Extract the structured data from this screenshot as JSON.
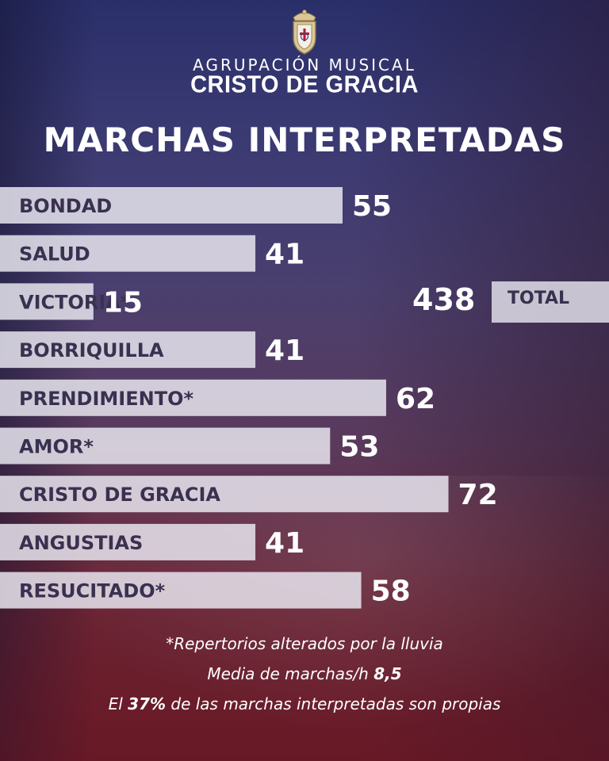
{
  "header": {
    "brand_top": "AGRUPACIÓN MUSICAL",
    "brand_main": "CRISTO DE GRACIA",
    "title": "MARCHAS INTERPRETADAS"
  },
  "chart_data": {
    "type": "bar",
    "orientation": "horizontal",
    "categories": [
      "BONDAD",
      "SALUD",
      "VICTORIA*",
      "BORRIQUILLA",
      "PRENDIMIENTO*",
      "AMOR*",
      "CRISTO DE GRACIA",
      "ANGUSTIAS",
      "RESUCITADO*"
    ],
    "values": [
      55,
      41,
      15,
      41,
      62,
      53,
      72,
      41,
      58
    ],
    "bar_color": "#e6e4ee",
    "label_color": "#3a3150",
    "value_color": "#ffffff"
  },
  "total": {
    "label": "TOTAL",
    "value": "438"
  },
  "footer": {
    "note": "*Repertorios alterados por la lluvia",
    "avg_prefix": "Media de marchas/h ",
    "avg_value": "8,5",
    "pct_prefix": "El ",
    "pct_value": "37%",
    "pct_suffix": " de las marchas interpretadas son propias"
  },
  "colors": {
    "bg_top": "#2a2f6a",
    "bg_bottom": "#7a1f2a"
  }
}
